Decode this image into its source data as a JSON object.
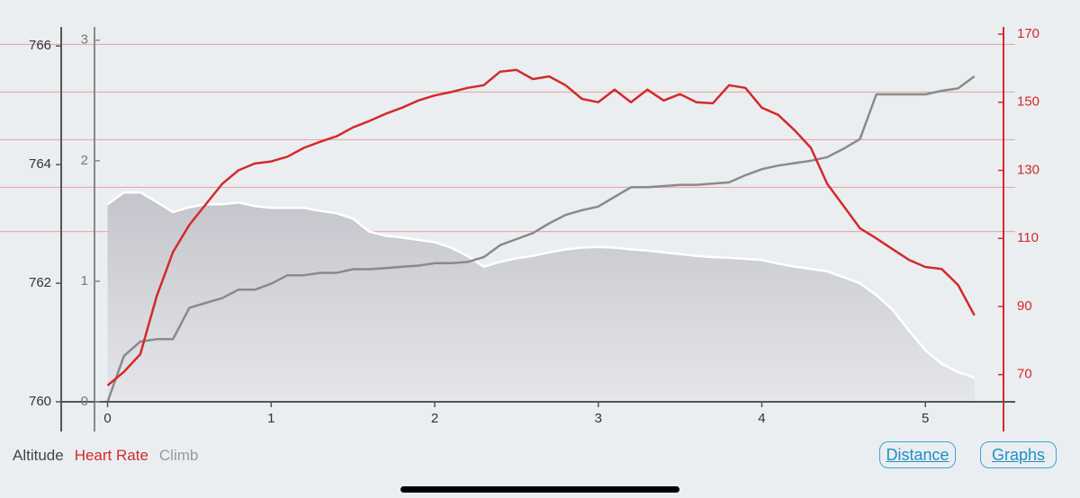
{
  "chart_data": {
    "type": "line",
    "x": [
      0,
      0.1,
      0.2,
      0.3,
      0.4,
      0.5,
      0.6,
      0.7,
      0.8,
      0.9,
      1.0,
      1.1,
      1.2,
      1.3,
      1.4,
      1.5,
      1.6,
      1.7,
      1.8,
      1.9,
      2.0,
      2.1,
      2.2,
      2.3,
      2.4,
      2.5,
      2.6,
      2.7,
      2.8,
      2.9,
      3.0,
      3.1,
      3.2,
      3.3,
      3.4,
      3.5,
      3.6,
      3.7,
      3.8,
      3.9,
      4.0,
      4.1,
      4.2,
      4.3,
      4.4,
      4.5,
      4.6,
      4.7,
      4.8,
      4.9,
      5.0,
      5.1,
      5.2,
      5.3
    ],
    "xlim": [
      -0.08,
      5.45
    ],
    "xticks": [
      0,
      1,
      2,
      3,
      4,
      5
    ],
    "ylim": [
      760,
      766.2
    ],
    "yticks": [
      760,
      762,
      764,
      766
    ],
    "y2lim": [
      62,
      170
    ],
    "y2ticks": [
      70,
      90,
      110,
      130,
      150,
      170
    ],
    "y3lim": [
      0,
      3.05
    ],
    "y3ticks": [
      0,
      1,
      2,
      3
    ],
    "hr_zone_lines": [
      167,
      153,
      139,
      125,
      112
    ],
    "series": [
      {
        "name": "Altitude",
        "color": "#3a3a3a",
        "fill": "#c9cad0",
        "axis": "y",
        "area": true,
        "values": [
          763.33,
          763.53,
          763.53,
          763.37,
          763.2,
          763.28,
          763.33,
          763.33,
          763.36,
          763.3,
          763.27,
          763.27,
          763.27,
          763.22,
          763.18,
          763.09,
          762.87,
          762.8,
          762.77,
          762.73,
          762.69,
          762.6,
          762.46,
          762.28,
          762.36,
          762.42,
          762.46,
          762.52,
          762.57,
          762.6,
          762.61,
          762.6,
          762.57,
          762.55,
          762.52,
          762.49,
          762.46,
          762.44,
          762.43,
          762.41,
          762.39,
          762.33,
          762.28,
          762.24,
          762.2,
          762.1,
          762.0,
          761.8,
          761.55,
          761.2,
          760.87,
          760.64,
          760.5,
          760.41
        ]
      },
      {
        "name": "Heart Rate",
        "color": "#d42a2a",
        "axis": "y2",
        "values": [
          66.8,
          70.8,
          76,
          93,
          106,
          114,
          120,
          126,
          130,
          132,
          132.6,
          134,
          136.6,
          138.4,
          140,
          142.6,
          144.5,
          146.6,
          148.4,
          150.5,
          152,
          153,
          154.2,
          155,
          159,
          159.5,
          156.8,
          157.6,
          155,
          151,
          150,
          153.7,
          150,
          153.7,
          150.5,
          152.4,
          150,
          149.7,
          155,
          154.2,
          148.4,
          146.3,
          141.8,
          136.6,
          126,
          119.5,
          113,
          110,
          106.8,
          103.7,
          101.6,
          101,
          96.3,
          87.4
        ]
      },
      {
        "name": "Climb",
        "color": "#8a8a8a",
        "axis": "y3",
        "values": [
          0,
          0.38,
          0.5,
          0.52,
          0.52,
          0.78,
          0.82,
          0.86,
          0.93,
          0.93,
          0.98,
          1.05,
          1.05,
          1.07,
          1.07,
          1.1,
          1.1,
          1.11,
          1.12,
          1.13,
          1.15,
          1.15,
          1.16,
          1.2,
          1.3,
          1.35,
          1.4,
          1.48,
          1.55,
          1.59,
          1.62,
          1.7,
          1.78,
          1.78,
          1.79,
          1.8,
          1.8,
          1.81,
          1.82,
          1.88,
          1.93,
          1.96,
          1.98,
          2.0,
          2.03,
          2.1,
          2.18,
          2.55,
          2.55,
          2.55,
          2.55,
          2.58,
          2.6,
          2.7
        ]
      }
    ]
  },
  "controls": {
    "buttons": [
      "Distance",
      "Graphs"
    ]
  }
}
